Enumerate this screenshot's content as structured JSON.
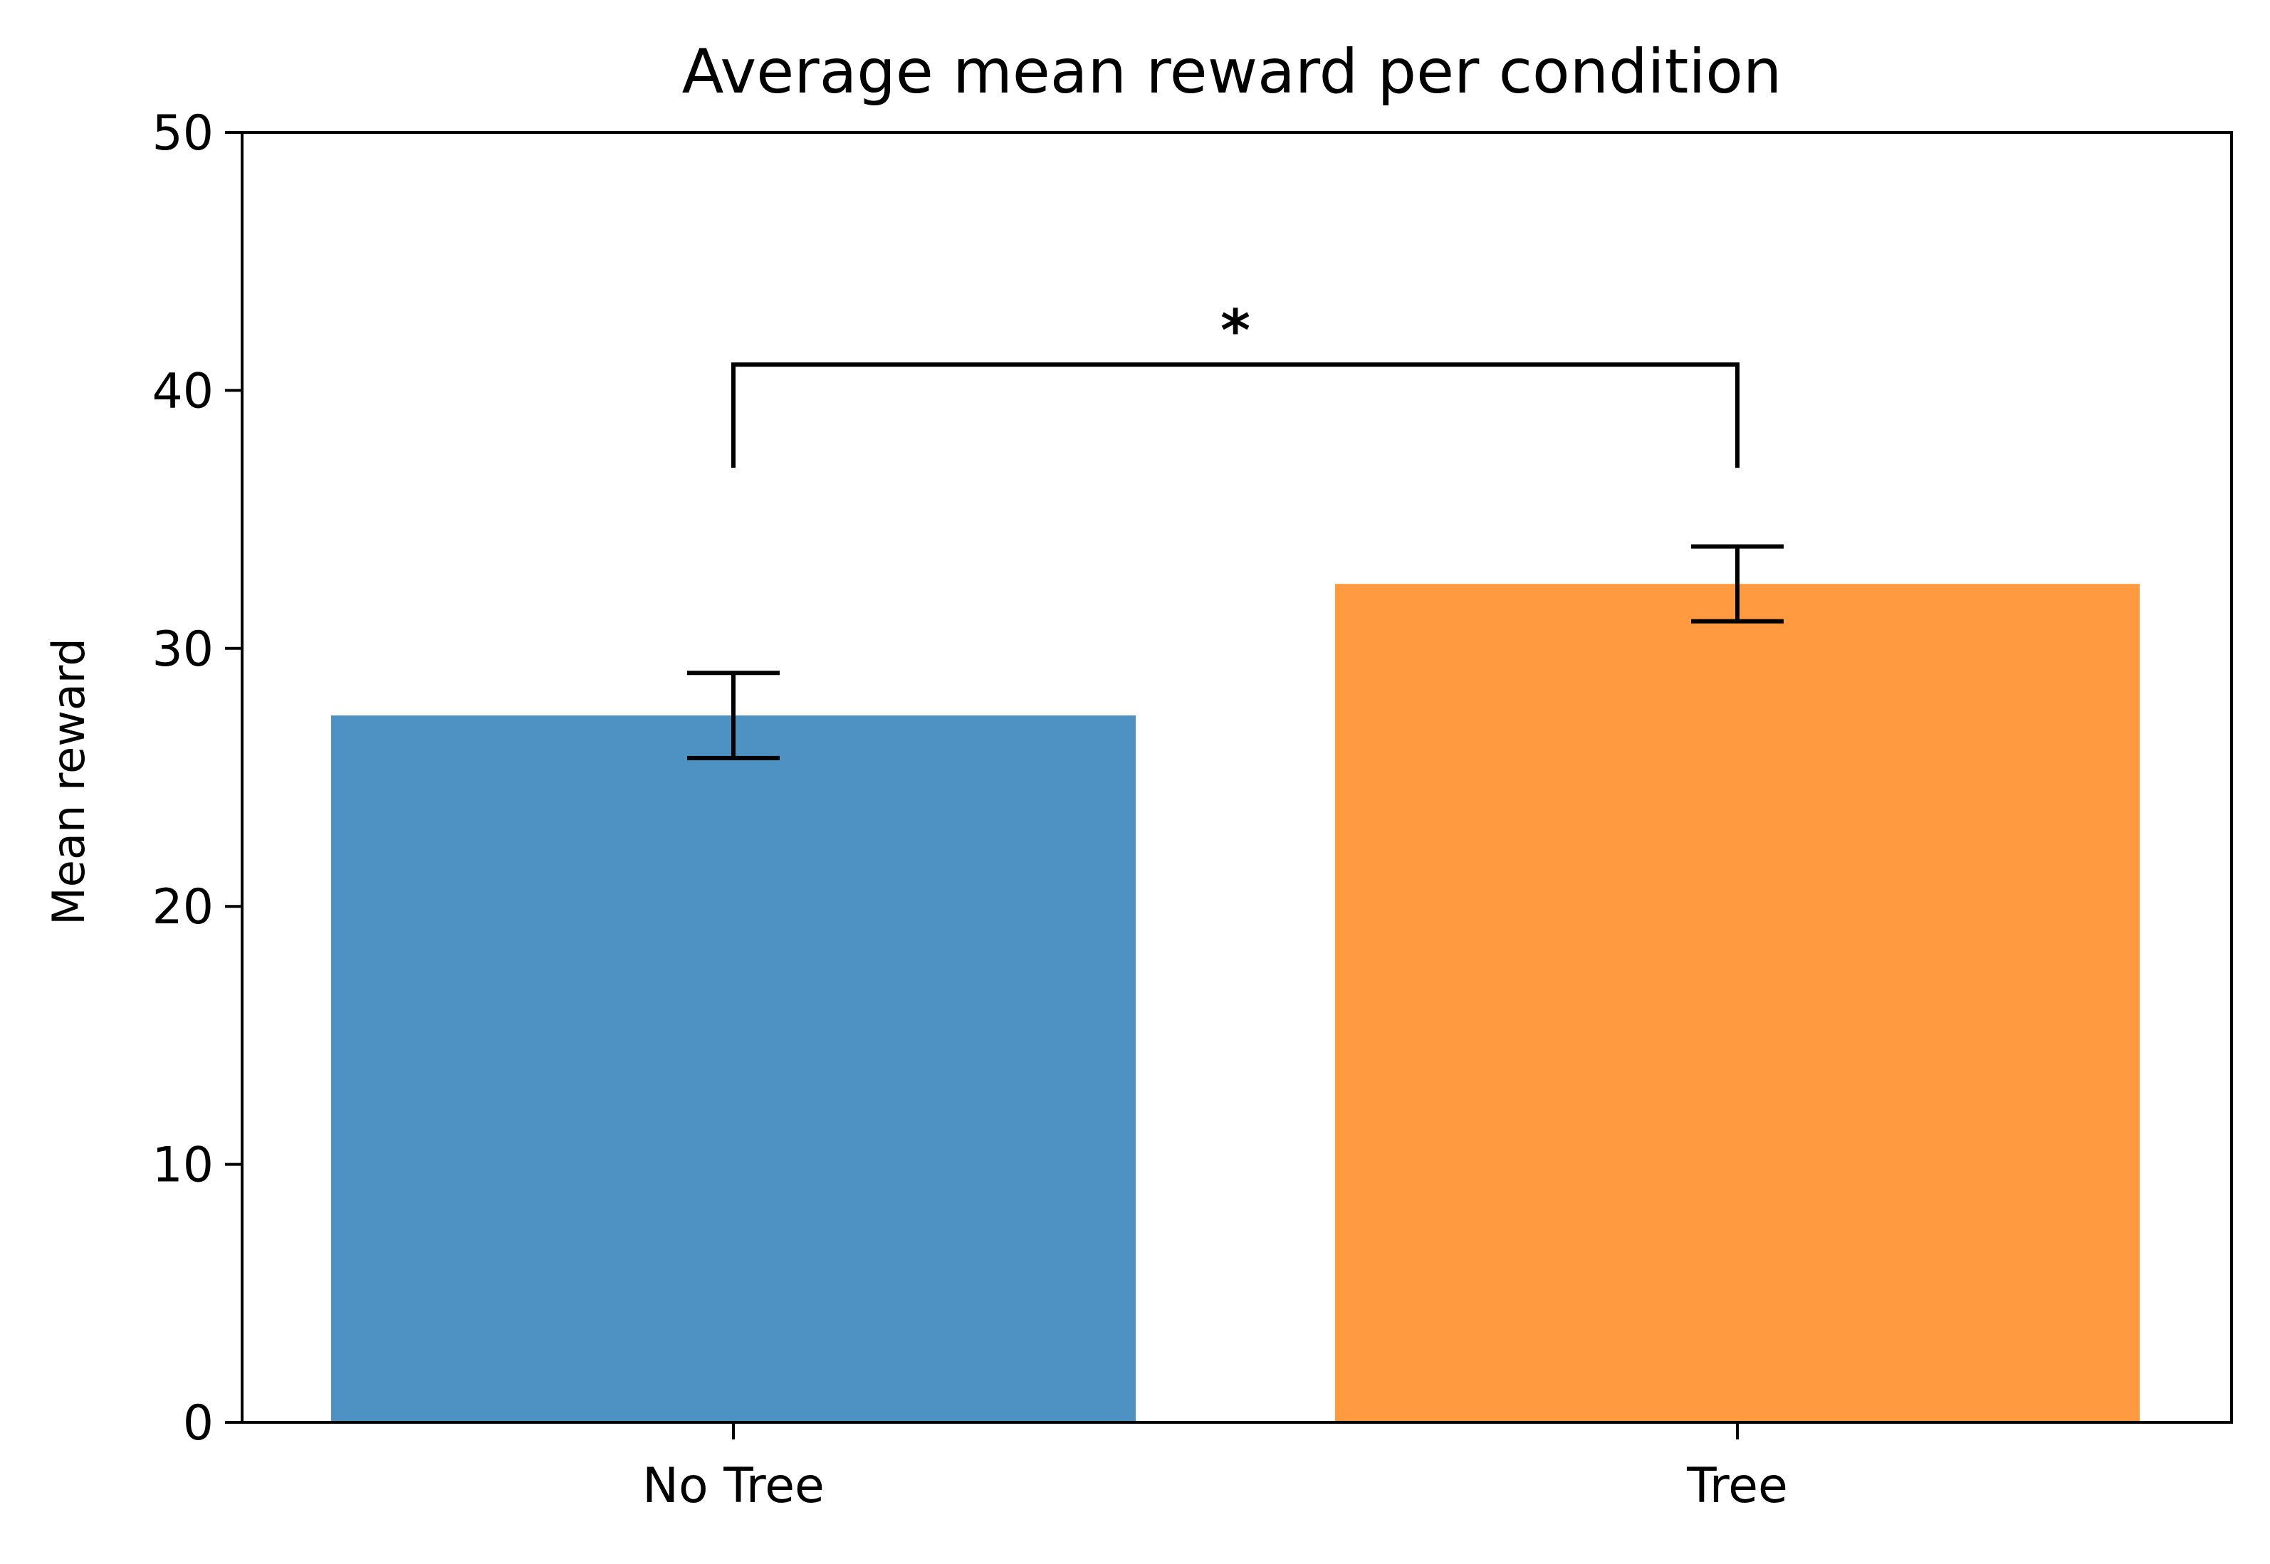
{
  "chart_data": {
    "type": "bar",
    "title": "Average mean reward per condition",
    "xlabel": "",
    "ylabel": "Mean reward",
    "ylim": [
      0,
      50
    ],
    "yticks": [
      "0",
      "10",
      "20",
      "30",
      "40",
      "50"
    ],
    "grid": false,
    "categories": [
      "No Tree",
      "Tree"
    ],
    "values": [
      27.4,
      32.5
    ],
    "errors": [
      1.65,
      1.45
    ],
    "colors": [
      "#4d92c3",
      "#ff9a41"
    ],
    "significance": {
      "between": [
        "No Tree",
        "Tree"
      ],
      "marker": "*",
      "bracket_level": 41,
      "bracket_bottom": 37
    }
  }
}
